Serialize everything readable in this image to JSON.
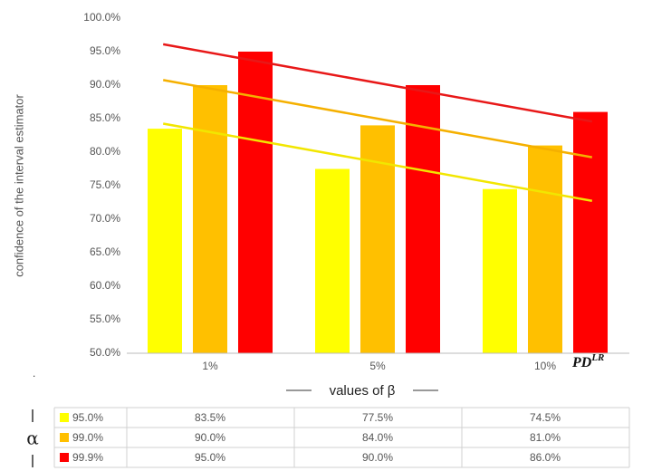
{
  "chart_data": {
    "type": "bar",
    "y_axis_label": "confidence of the interval estimator",
    "x_axis_label": "values of β",
    "corner_label": {
      "main": "PD",
      "sup": "LR"
    },
    "table_row_header": "α",
    "categories": [
      "1%",
      "5%",
      "10%"
    ],
    "series": [
      {
        "name": "95.0%",
        "color": "#ffff00",
        "trend_color": "#f2e600",
        "values": [
          83.5,
          77.5,
          74.5
        ],
        "value_labels": [
          "83.5%",
          "77.5%",
          "74.5%"
        ]
      },
      {
        "name": "99.0%",
        "color": "#ffc000",
        "trend_color": "#f5b000",
        "values": [
          90.0,
          84.0,
          81.0
        ],
        "value_labels": [
          "90.0%",
          "84.0%",
          "81.0%"
        ]
      },
      {
        "name": "99.9%",
        "color": "#ff0000",
        "trend_color": "#e81818",
        "values": [
          95.0,
          90.0,
          86.0
        ],
        "value_labels": [
          "95.0%",
          "90.0%",
          "86.0%"
        ]
      }
    ],
    "trendline": "linear",
    "ylim": [
      50,
      100
    ],
    "yticks": [
      {
        "value": 50,
        "label": "50.0%"
      },
      {
        "value": 55,
        "label": "55.0%"
      },
      {
        "value": 60,
        "label": "60.0%"
      },
      {
        "value": 65,
        "label": "65.0%"
      },
      {
        "value": 70,
        "label": "70.0%"
      },
      {
        "value": 75,
        "label": "75.0%"
      },
      {
        "value": 80,
        "label": "80.0%"
      },
      {
        "value": 85,
        "label": "85.0%"
      },
      {
        "value": 90,
        "label": "90.0%"
      },
      {
        "value": 95,
        "label": "95.0%"
      },
      {
        "value": 100,
        "label": "100.0%"
      }
    ],
    "grid": false
  }
}
